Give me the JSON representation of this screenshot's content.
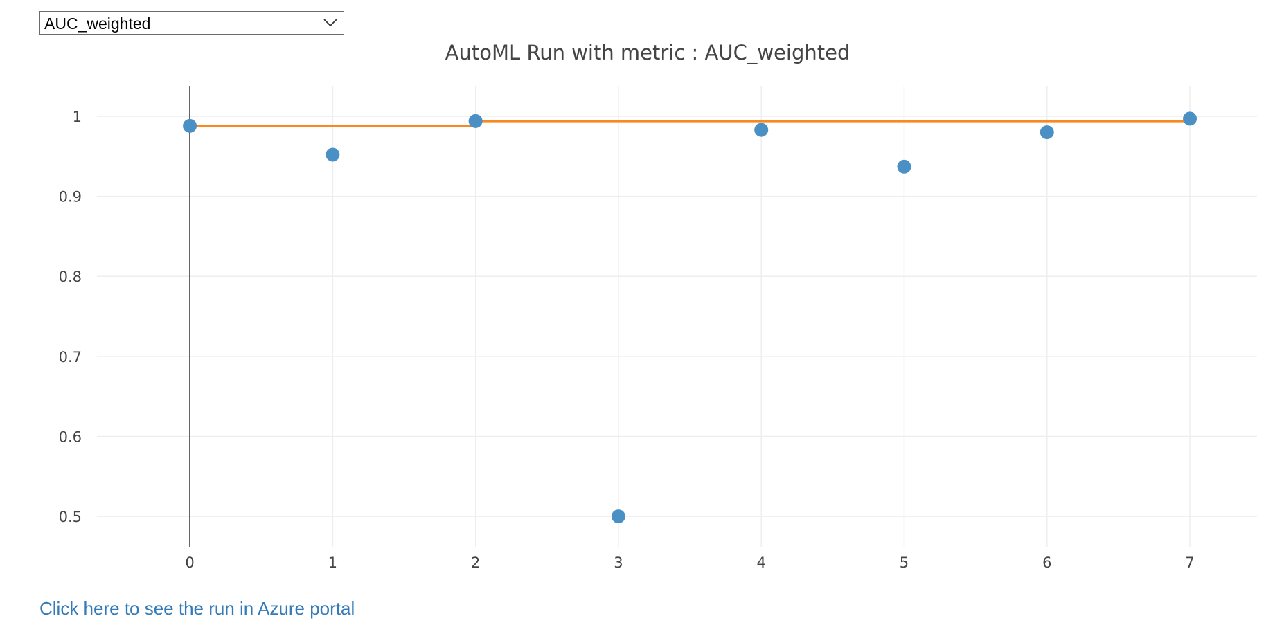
{
  "metric_select": {
    "selected": "AUC_weighted"
  },
  "link": {
    "text": "Click here to see the run in Azure portal"
  },
  "chart_data": {
    "type": "scatter",
    "title": "AutoML Run with metric : AUC_weighted",
    "xlabel": "",
    "ylabel": "",
    "x_ticks": [
      0,
      1,
      2,
      3,
      4,
      5,
      6,
      7
    ],
    "y_ticks": [
      0.5,
      0.6,
      0.7,
      0.8,
      0.9,
      1
    ],
    "y_tick_labels": [
      "0.5",
      "0.6",
      "0.7",
      "0.8",
      "0.9",
      "1"
    ],
    "xlim": [
      -0.65,
      7.47
    ],
    "ylim": [
      0.462,
      1.038
    ],
    "grid": true,
    "legend": "none",
    "series": [
      {
        "kind": "markers",
        "color": "#4a90c4",
        "x": [
          0,
          1,
          2,
          3,
          4,
          5,
          6,
          7
        ],
        "y": [
          0.988,
          0.952,
          0.994,
          0.5,
          0.983,
          0.937,
          0.98,
          0.997
        ]
      },
      {
        "kind": "step-line",
        "color": "#f7891e",
        "x": [
          0,
          1,
          2,
          3,
          4,
          5,
          6,
          7
        ],
        "y": [
          0.988,
          0.988,
          0.994,
          0.994,
          0.994,
          0.994,
          0.994,
          0.997
        ]
      }
    ]
  }
}
